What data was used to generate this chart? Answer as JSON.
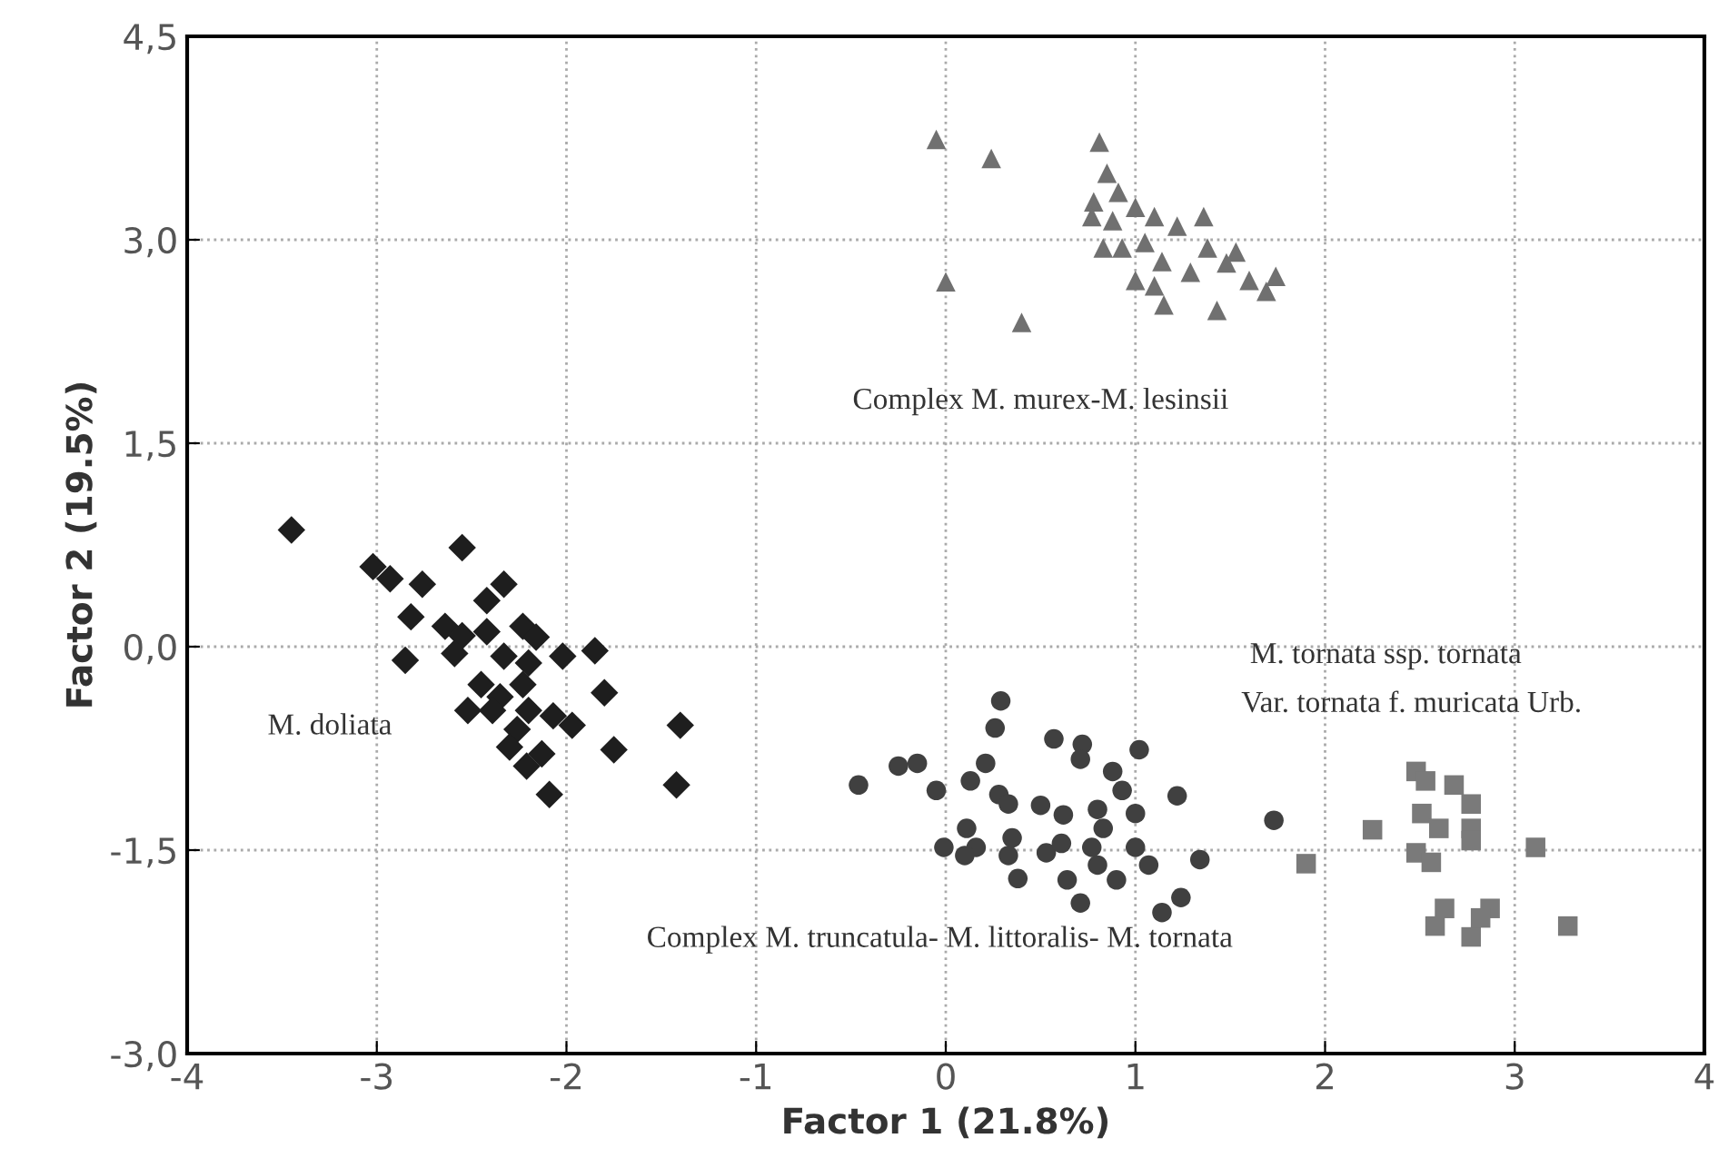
{
  "chart_data": {
    "type": "scatter",
    "xlabel": "Factor 1 (21.8%)",
    "ylabel": "Factor 2 (19.5%)",
    "xlim": [
      -4,
      4
    ],
    "ylim": [
      -3,
      4.5
    ],
    "xticks": [
      -4,
      -3,
      -2,
      -1,
      0,
      1,
      2,
      3,
      4
    ],
    "yticks": [
      {
        "value": -3,
        "label": "-3,0"
      },
      {
        "value": -1.5,
        "label": "-1,5"
      },
      {
        "value": 0,
        "label": "0,0"
      },
      {
        "value": 1.5,
        "label": "1,5"
      },
      {
        "value": 3,
        "label": "3,0"
      },
      {
        "value": 4.5,
        "label": "4,5"
      }
    ],
    "grid": true,
    "series": [
      {
        "color": "#1e1e1e",
        "marker": "diamond",
        "x": [
          -3.45,
          -2.55,
          -3.02,
          -2.93,
          -2.76,
          -2.33,
          -2.42,
          -2.82,
          -2.64,
          -2.55,
          -2.42,
          -2.23,
          -2.16,
          -2.85,
          -2.59,
          -2.33,
          -2.2,
          -2.02,
          -1.85,
          -2.45,
          -2.35,
          -2.23,
          -2.52,
          -2.39,
          -1.8,
          -2.2,
          -2.26,
          -1.97,
          -2.07,
          -2.3,
          -2.13,
          -1.75,
          -1.4,
          -2.21,
          -2.09,
          -1.42
        ],
        "values": [
          0.86,
          0.73,
          0.59,
          0.5,
          0.46,
          0.46,
          0.34,
          0.22,
          0.15,
          0.08,
          0.11,
          0.15,
          0.07,
          -0.1,
          -0.05,
          -0.07,
          -0.12,
          -0.07,
          -0.03,
          -0.28,
          -0.37,
          -0.28,
          -0.47,
          -0.47,
          -0.34,
          -0.47,
          -0.61,
          -0.58,
          -0.51,
          -0.74,
          -0.79,
          -0.76,
          -0.58,
          -0.88,
          -1.09,
          -1.02
        ]
      },
      {
        "color": "#404040",
        "marker": "circle",
        "x": [
          -0.46,
          -0.25,
          -0.15,
          -0.05,
          0.29,
          0.26,
          0.21,
          0.13,
          0.28,
          0.33,
          0.11,
          0.16,
          -0.01,
          0.1,
          0.35,
          0.33,
          0.38,
          0.5,
          0.62,
          0.57,
          0.72,
          0.71,
          0.53,
          0.61,
          0.64,
          0.71,
          0.8,
          0.83,
          0.77,
          0.8,
          0.9,
          0.88,
          0.93,
          1.0,
          1.02,
          1.0,
          1.07,
          1.22,
          1.34,
          1.24,
          1.14,
          1.73
        ],
        "values": [
          -1.02,
          -0.88,
          -0.86,
          -1.06,
          -0.4,
          -0.6,
          -0.86,
          -0.99,
          -1.09,
          -1.16,
          -1.34,
          -1.48,
          -1.48,
          -1.54,
          -1.41,
          -1.54,
          -1.71,
          -1.17,
          -1.24,
          -0.68,
          -0.72,
          -0.83,
          -1.52,
          -1.45,
          -1.72,
          -1.89,
          -1.2,
          -1.34,
          -1.48,
          -1.61,
          -1.72,
          -0.92,
          -1.06,
          -1.23,
          -0.76,
          -1.48,
          -1.61,
          -1.1,
          -1.57,
          -1.85,
          -1.96,
          -1.28
        ]
      },
      {
        "color": "#7a7a7a",
        "marker": "square",
        "x": [
          1.9,
          2.25,
          2.48,
          2.53,
          2.68,
          2.77,
          2.51,
          2.6,
          2.77,
          2.77,
          2.48,
          2.56,
          3.11,
          2.63,
          2.87,
          2.58,
          2.77,
          2.82,
          3.28
        ],
        "values": [
          -1.6,
          -1.35,
          -0.92,
          -0.99,
          -1.02,
          -1.16,
          -1.23,
          -1.34,
          -1.34,
          -1.43,
          -1.52,
          -1.59,
          -1.48,
          -1.93,
          -1.93,
          -2.06,
          -2.14,
          -2.0,
          -2.06
        ]
      },
      {
        "color": "#707070",
        "marker": "triangle",
        "x": [
          -0.05,
          0.24,
          0.0,
          0.4,
          0.81,
          0.85,
          0.78,
          0.91,
          1.0,
          0.77,
          0.88,
          1.1,
          1.22,
          1.36,
          0.83,
          0.93,
          1.05,
          1.14,
          1.0,
          1.1,
          1.15,
          1.29,
          1.38,
          1.53,
          1.48,
          1.6,
          1.74,
          1.69,
          1.43
        ],
        "values": [
          3.74,
          3.6,
          2.69,
          2.39,
          3.72,
          3.49,
          3.28,
          3.35,
          3.24,
          3.17,
          3.14,
          3.17,
          3.1,
          3.17,
          2.94,
          2.94,
          2.98,
          2.84,
          2.7,
          2.66,
          2.52,
          2.76,
          2.94,
          2.91,
          2.83,
          2.7,
          2.73,
          2.62,
          2.48
        ]
      }
    ],
    "annotations": [
      "Complex M. murex-M. lesinsii",
      "M. doliata",
      "M. tornata ssp. tornata",
      "Var. tornata f. muricata Urb.",
      "Complex M. truncatula- M. littoralis- M. tornata"
    ]
  }
}
